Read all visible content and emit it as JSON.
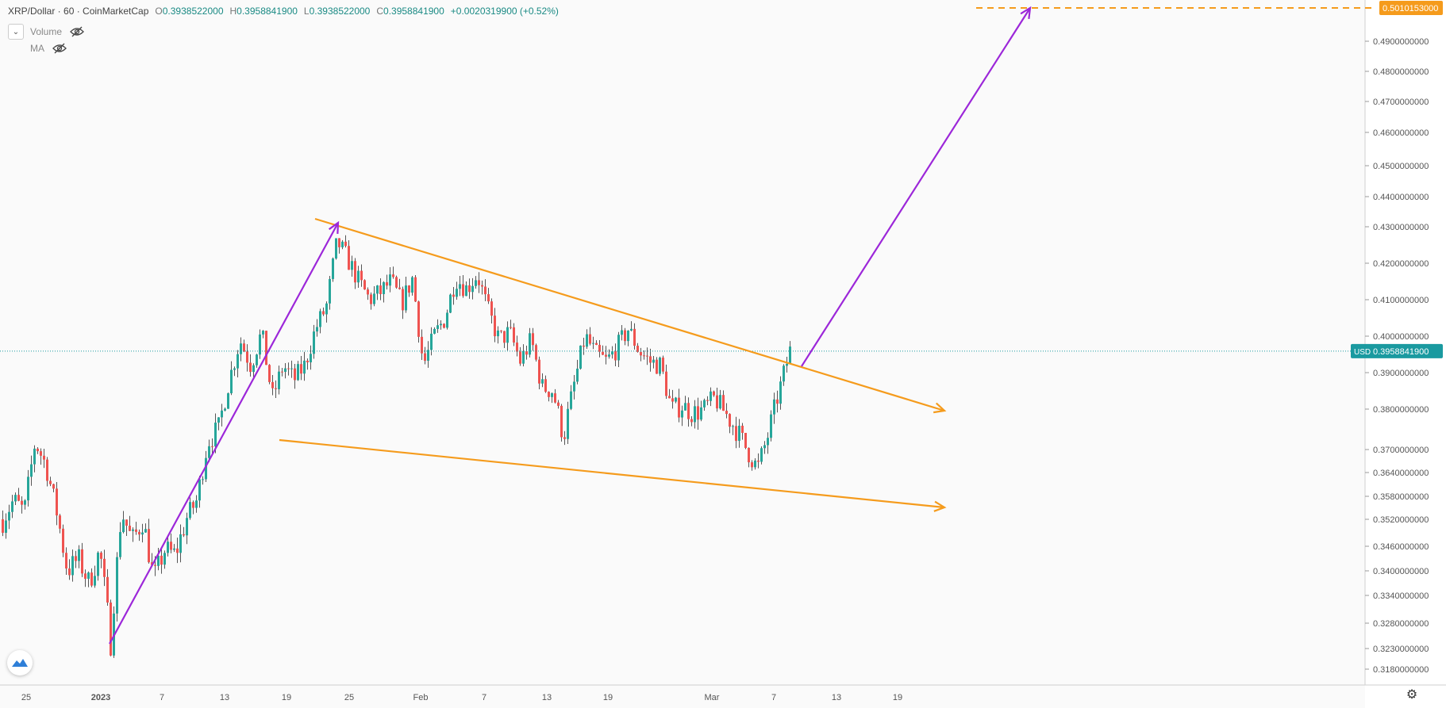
{
  "header": {
    "symbol": "XRP/Dollar · 60 · CoinMarketCap",
    "open_label": "O",
    "open": "0.3938522000",
    "high_label": "H",
    "high": "0.3958841900",
    "low_label": "L",
    "low": "0.3938522000",
    "close_label": "C",
    "close": "0.3958841900",
    "change": "+0.0020319900 (+0.52%)"
  },
  "indicators": [
    {
      "name": "Volume",
      "icon": "eye-crossed-icon"
    },
    {
      "name": "MA",
      "icon": "eye-crossed-icon"
    }
  ],
  "colors": {
    "up": "#26a69a",
    "down": "#ef5350",
    "wick": "#555555",
    "wedge": "#f59b1c",
    "arrow": "#9c27d9",
    "price_line": "#1a9aa0",
    "target": "#f59b1c"
  },
  "chart_data": {
    "type": "candlestick",
    "interval": "60",
    "x_labels": [
      "25",
      "2023",
      "7",
      "13",
      "19",
      "25",
      "Feb",
      "7",
      "13",
      "19",
      "Mar",
      "7",
      "13",
      "19"
    ],
    "y_ticks": [
      "0.4900000000",
      "0.4800000000",
      "0.4700000000",
      "0.4600000000",
      "0.4500000000",
      "0.4400000000",
      "0.4300000000",
      "0.4200000000",
      "0.4100000000",
      "0.4000000000",
      "0.3900000000",
      "0.3800000000",
      "0.3700000000",
      "0.3640000000",
      "0.3580000000",
      "0.3520000000",
      "0.3460000000",
      "0.3400000000",
      "0.3340000000",
      "0.3280000000",
      "0.3230000000",
      "0.3180000000"
    ],
    "current_price": {
      "label": "USD",
      "value": "0.3958841900"
    },
    "target_price": {
      "value": "0.5010153000"
    },
    "price_path": [
      [
        "25",
        0.352
      ],
      [
        "25",
        0.357
      ],
      [
        "25",
        0.354
      ],
      [
        "2023",
        0.372
      ],
      [
        "2023",
        0.366
      ],
      [
        "2023",
        0.354
      ],
      [
        "2023",
        0.34
      ],
      [
        "2023",
        0.343
      ],
      [
        "2023",
        0.337
      ],
      [
        "2023",
        0.345
      ],
      [
        "2023",
        0.324
      ],
      [
        "2023",
        0.354
      ],
      [
        "7",
        0.347
      ],
      [
        "7",
        0.352
      ],
      [
        "7",
        0.338
      ],
      [
        "7",
        0.345
      ],
      [
        "7",
        0.344
      ],
      [
        "7",
        0.352
      ],
      [
        "13",
        0.357
      ],
      [
        "13",
        0.372
      ],
      [
        "13",
        0.375
      ],
      [
        "13",
        0.388
      ],
      [
        "13",
        0.399
      ],
      [
        "13",
        0.392
      ],
      [
        "13",
        0.401
      ],
      [
        "19",
        0.383
      ],
      [
        "19",
        0.392
      ],
      [
        "19",
        0.388
      ],
      [
        "19",
        0.392
      ],
      [
        "19",
        0.402
      ],
      [
        "19",
        0.408
      ],
      [
        "19",
        0.426
      ],
      [
        "25",
        0.421
      ],
      [
        "25",
        0.415
      ],
      [
        "25",
        0.41
      ],
      [
        "25",
        0.412
      ],
      [
        "25",
        0.415
      ],
      [
        "25",
        0.409
      ],
      [
        "Feb",
        0.416
      ],
      [
        "Feb",
        0.392
      ],
      [
        "Feb",
        0.4
      ],
      [
        "Feb",
        0.405
      ],
      [
        "Feb",
        0.416
      ],
      [
        "Feb",
        0.413
      ],
      [
        "7",
        0.417
      ],
      [
        "7",
        0.407
      ],
      [
        "7",
        0.399
      ],
      [
        "7",
        0.401
      ],
      [
        "7",
        0.393
      ],
      [
        "7",
        0.399
      ],
      [
        "13",
        0.386
      ],
      [
        "13",
        0.385
      ],
      [
        "13",
        0.373
      ],
      [
        "13",
        0.387
      ],
      [
        "13",
        0.4
      ],
      [
        "13",
        0.395
      ],
      [
        "19",
        0.393
      ],
      [
        "19",
        0.397
      ],
      [
        "19",
        0.402
      ],
      [
        "19",
        0.396
      ],
      [
        "19",
        0.393
      ],
      [
        "19",
        0.392
      ],
      [
        "Mar",
        0.38
      ],
      [
        "Mar",
        0.381
      ],
      [
        "Mar",
        0.379
      ],
      [
        "Mar",
        0.38
      ],
      [
        "Mar",
        0.383
      ],
      [
        "Mar",
        0.379
      ],
      [
        "7",
        0.375
      ],
      [
        "7",
        0.37
      ],
      [
        "7",
        0.365
      ],
      [
        "7",
        0.374
      ],
      [
        "7",
        0.385
      ],
      [
        "7",
        0.396
      ]
    ],
    "drawings": [
      {
        "kind": "wedge-upper",
        "from": [
          "19",
          0.432
        ],
        "to": [
          "19",
          0.381
        ],
        "extended": true
      },
      {
        "kind": "wedge-lower",
        "from": [
          "19",
          0.379
        ],
        "to": [
          "19",
          0.3575
        ],
        "extended": true
      },
      {
        "kind": "impulse-arrow",
        "from": [
          "2023",
          0.323
        ],
        "to": [
          "19",
          0.431
        ]
      },
      {
        "kind": "projection-arrow",
        "from": [
          "7",
          0.393
        ],
        "to": [
          "19",
          0.5
        ]
      },
      {
        "kind": "target-line",
        "value": 0.5010153
      }
    ]
  }
}
